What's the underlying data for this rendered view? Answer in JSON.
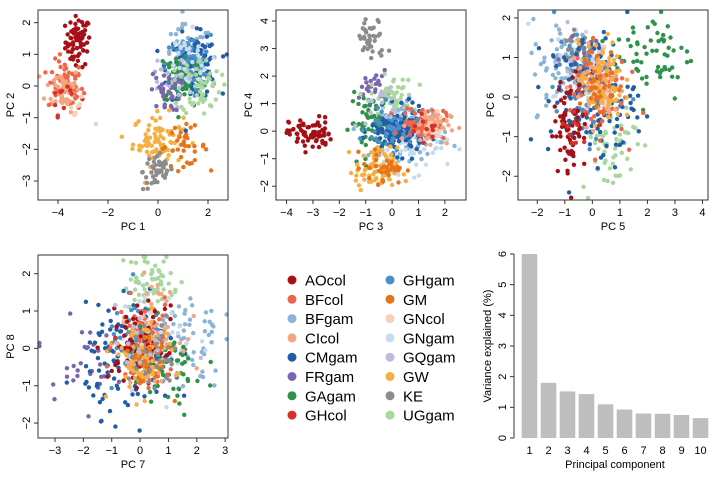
{
  "legend": [
    {
      "label": "AOcol",
      "color": "#a50f15"
    },
    {
      "label": "BFcol",
      "color": "#ef6548"
    },
    {
      "label": "BFgam",
      "color": "#8cb4d6"
    },
    {
      "label": "CIcol",
      "color": "#f4a582"
    },
    {
      "label": "CMgam",
      "color": "#1f5fa8"
    },
    {
      "label": "FRgam",
      "color": "#7b64b0"
    },
    {
      "label": "GAgam",
      "color": "#2e9248"
    },
    {
      "label": "GHcol",
      "color": "#d73027"
    },
    {
      "label": "GHgam",
      "color": "#4a90c8"
    },
    {
      "label": "GM",
      "color": "#e6741c"
    },
    {
      "label": "GNcol",
      "color": "#f8cfba"
    },
    {
      "label": "GNgam",
      "color": "#c6dbef"
    },
    {
      "label": "GQgam",
      "color": "#bcbddc"
    },
    {
      "label": "GW",
      "color": "#f5b041"
    },
    {
      "label": "KE",
      "color": "#8c8c8c"
    },
    {
      "label": "UGgam",
      "color": "#a8d8a0"
    }
  ],
  "chart_data": [
    {
      "type": "scatter",
      "xlabel": "PC 1",
      "ylabel": "PC 2",
      "xlim": [
        -4.8,
        2.8
      ],
      "ylim": [
        -3.6,
        2.4
      ],
      "xticks": [
        -4,
        -2,
        0,
        2
      ],
      "yticks": [
        -3,
        -2,
        -1,
        0,
        1,
        2
      ],
      "clusters": [
        {
          "group": "AOcol",
          "cx": -3.2,
          "cy": 1.4,
          "sx": 0.25,
          "sy": 0.4,
          "n": 70
        },
        {
          "group": "BFcol",
          "cx": -3.7,
          "cy": 0.0,
          "sx": 0.35,
          "sy": 0.4,
          "n": 60
        },
        {
          "group": "CIcol",
          "cx": -3.8,
          "cy": -0.1,
          "sx": 0.35,
          "sy": 0.35,
          "n": 50
        },
        {
          "group": "GHcol",
          "cx": -3.7,
          "cy": -0.3,
          "sx": 0.3,
          "sy": 0.3,
          "n": 12
        },
        {
          "group": "GNcol",
          "cx": -3.3,
          "cy": -0.8,
          "sx": 0.3,
          "sy": 0.2,
          "n": 8
        },
        {
          "group": "GW",
          "cx": 0.0,
          "cy": -1.7,
          "sx": 0.5,
          "sy": 0.4,
          "n": 80
        },
        {
          "group": "GM",
          "cx": 1.0,
          "cy": -1.9,
          "sx": 0.5,
          "sy": 0.3,
          "n": 35
        },
        {
          "group": "KE",
          "cx": 0.0,
          "cy": -2.7,
          "sx": 0.3,
          "sy": 0.3,
          "n": 45
        },
        {
          "group": "BFgam",
          "cx": 1.2,
          "cy": 0.9,
          "sx": 0.5,
          "sy": 0.5,
          "n": 60
        },
        {
          "group": "CMgam",
          "cx": 1.4,
          "cy": 0.6,
          "sx": 0.5,
          "sy": 0.5,
          "n": 140
        },
        {
          "group": "GHgam",
          "cx": 1.2,
          "cy": 0.7,
          "sx": 0.45,
          "sy": 0.45,
          "n": 50
        },
        {
          "group": "GAgam",
          "cx": 0.9,
          "cy": 0.3,
          "sx": 0.45,
          "sy": 0.45,
          "n": 60
        },
        {
          "group": "UGgam",
          "cx": 1.7,
          "cy": 0.0,
          "sx": 0.4,
          "sy": 0.45,
          "n": 60
        },
        {
          "group": "GNgam",
          "cx": 1.0,
          "cy": 0.7,
          "sx": 0.6,
          "sy": 0.5,
          "n": 30
        },
        {
          "group": "GQgam",
          "cx": 0.3,
          "cy": 0.1,
          "sx": 0.4,
          "sy": 0.4,
          "n": 15
        },
        {
          "group": "FRgam",
          "cx": 0.3,
          "cy": -0.2,
          "sx": 0.3,
          "sy": 0.3,
          "n": 30
        }
      ]
    },
    {
      "type": "scatter",
      "xlabel": "PC 3",
      "ylabel": "PC 4",
      "xlim": [
        -4.4,
        2.8
      ],
      "ylim": [
        -2.5,
        4.4
      ],
      "xticks": [
        -4,
        -3,
        -2,
        -1,
        0,
        1,
        2
      ],
      "yticks": [
        -2,
        -1,
        0,
        1,
        2,
        3,
        4
      ],
      "clusters": [
        {
          "group": "AOcol",
          "cx": -3.1,
          "cy": -0.1,
          "sx": 0.4,
          "sy": 0.3,
          "n": 70
        },
        {
          "group": "KE",
          "cx": -0.8,
          "cy": 3.3,
          "sx": 0.3,
          "sy": 0.4,
          "n": 40
        },
        {
          "group": "FRgam",
          "cx": -0.7,
          "cy": 1.6,
          "sx": 0.25,
          "sy": 0.3,
          "n": 25
        },
        {
          "group": "UGgam",
          "cx": 0.0,
          "cy": 1.2,
          "sx": 0.4,
          "sy": 0.4,
          "n": 60
        },
        {
          "group": "GAgam",
          "cx": -0.8,
          "cy": 0.3,
          "sx": 0.4,
          "sy": 0.5,
          "n": 60
        },
        {
          "group": "BFgam",
          "cx": 0.8,
          "cy": 0.0,
          "sx": 0.6,
          "sy": 0.5,
          "n": 80
        },
        {
          "group": "GNgam",
          "cx": 0.9,
          "cy": -0.5,
          "sx": 0.6,
          "sy": 0.5,
          "n": 60
        },
        {
          "group": "CMgam",
          "cx": 0.2,
          "cy": 0.0,
          "sx": 0.5,
          "sy": 0.4,
          "n": 140
        },
        {
          "group": "GHgam",
          "cx": 0.0,
          "cy": 0.1,
          "sx": 0.5,
          "sy": 0.4,
          "n": 50
        },
        {
          "group": "BFcol",
          "cx": 1.2,
          "cy": 0.3,
          "sx": 0.4,
          "sy": 0.3,
          "n": 70
        },
        {
          "group": "CIcol",
          "cx": 1.4,
          "cy": 0.2,
          "sx": 0.4,
          "sy": 0.3,
          "n": 50
        },
        {
          "group": "GNcol",
          "cx": 1.5,
          "cy": 0.1,
          "sx": 0.3,
          "sy": 0.3,
          "n": 10
        },
        {
          "group": "GW",
          "cx": -0.6,
          "cy": -1.4,
          "sx": 0.4,
          "sy": 0.4,
          "n": 80
        },
        {
          "group": "GM",
          "cx": -0.3,
          "cy": -1.3,
          "sx": 0.4,
          "sy": 0.3,
          "n": 35
        },
        {
          "group": "GQgam",
          "cx": -0.4,
          "cy": 0.8,
          "sx": 0.3,
          "sy": 0.4,
          "n": 15
        },
        {
          "group": "GHcol",
          "cx": 1.3,
          "cy": 0.3,
          "sx": 0.3,
          "sy": 0.3,
          "n": 10
        }
      ]
    },
    {
      "type": "scatter",
      "xlabel": "PC 5",
      "ylabel": "PC 6",
      "xlim": [
        -2.7,
        4.2
      ],
      "ylim": [
        -2.6,
        2.2
      ],
      "xticks": [
        -2,
        -1,
        0,
        1,
        2,
        3,
        4
      ],
      "yticks": [
        -2,
        -1,
        0,
        1,
        2
      ],
      "clusters": [
        {
          "group": "GAgam",
          "cx": 2.2,
          "cy": 1.1,
          "sx": 0.7,
          "sy": 0.6,
          "n": 60
        },
        {
          "group": "BFgam",
          "cx": -1.0,
          "cy": 0.8,
          "sx": 0.6,
          "sy": 0.6,
          "n": 60
        },
        {
          "group": "GNgam",
          "cx": -0.3,
          "cy": 0.8,
          "sx": 0.6,
          "sy": 0.5,
          "n": 50
        },
        {
          "group": "KE",
          "cx": -0.5,
          "cy": 1.3,
          "sx": 0.3,
          "sy": 0.3,
          "n": 30
        },
        {
          "group": "GQgam",
          "cx": -0.7,
          "cy": 0.9,
          "sx": 0.4,
          "sy": 0.4,
          "n": 15
        },
        {
          "group": "FRgam",
          "cx": -0.3,
          "cy": 0.8,
          "sx": 0.4,
          "sy": 0.4,
          "n": 30
        },
        {
          "group": "UGgam",
          "cx": 0.6,
          "cy": -1.2,
          "sx": 0.5,
          "sy": 0.6,
          "n": 60
        },
        {
          "group": "CMgam",
          "cx": 0.0,
          "cy": 0.0,
          "sx": 0.8,
          "sy": 0.8,
          "n": 140
        },
        {
          "group": "GHgam",
          "cx": -0.2,
          "cy": 0.2,
          "sx": 0.6,
          "sy": 0.6,
          "n": 50
        },
        {
          "group": "BFcol",
          "cx": 0.2,
          "cy": 0.2,
          "sx": 0.5,
          "sy": 0.6,
          "n": 70
        },
        {
          "group": "CIcol",
          "cx": 0.2,
          "cy": 0.3,
          "sx": 0.5,
          "sy": 0.5,
          "n": 50
        },
        {
          "group": "GNcol",
          "cx": 0.3,
          "cy": 0.2,
          "sx": 0.3,
          "sy": 0.3,
          "n": 10
        },
        {
          "group": "GW",
          "cx": 0.3,
          "cy": 0.4,
          "sx": 0.4,
          "sy": 0.5,
          "n": 80
        },
        {
          "group": "GM",
          "cx": 0.1,
          "cy": 0.4,
          "sx": 0.4,
          "sy": 0.5,
          "n": 35
        },
        {
          "group": "AOcol",
          "cx": -0.8,
          "cy": -0.7,
          "sx": 0.3,
          "sy": 0.6,
          "n": 70
        },
        {
          "group": "GHcol",
          "cx": -0.5,
          "cy": -0.6,
          "sx": 0.3,
          "sy": 0.4,
          "n": 12
        }
      ]
    },
    {
      "type": "scatter",
      "xlabel": "PC 7",
      "ylabel": "PC 8",
      "xlim": [
        -3.6,
        3.1
      ],
      "ylim": [
        -2.4,
        2.5
      ],
      "xticks": [
        -3,
        -2,
        -1,
        0,
        1,
        2,
        3
      ],
      "yticks": [
        -2,
        -1,
        0,
        1,
        2
      ],
      "clusters": [
        {
          "group": "UGgam",
          "cx": 0.4,
          "cy": 1.8,
          "sx": 0.5,
          "sy": 0.4,
          "n": 60
        },
        {
          "group": "FRgam",
          "cx": -2.2,
          "cy": -0.3,
          "sx": 0.6,
          "sy": 0.5,
          "n": 30
        },
        {
          "group": "BFgam",
          "cx": 1.5,
          "cy": 0.3,
          "sx": 0.7,
          "sy": 0.7,
          "n": 60
        },
        {
          "group": "GNgam",
          "cx": 0.5,
          "cy": 0.3,
          "sx": 0.7,
          "sy": 0.6,
          "n": 50
        },
        {
          "group": "CMgam",
          "cx": -0.3,
          "cy": -0.3,
          "sx": 0.8,
          "sy": 0.7,
          "n": 140
        },
        {
          "group": "GHgam",
          "cx": 0.0,
          "cy": 0.0,
          "sx": 0.6,
          "sy": 0.6,
          "n": 50
        },
        {
          "group": "GAgam",
          "cx": 0.9,
          "cy": -0.6,
          "sx": 0.7,
          "sy": 0.6,
          "n": 60
        },
        {
          "group": "BFcol",
          "cx": 0.2,
          "cy": 0.2,
          "sx": 0.5,
          "sy": 0.6,
          "n": 70
        },
        {
          "group": "CIcol",
          "cx": 0.4,
          "cy": 0.5,
          "sx": 0.5,
          "sy": 0.6,
          "n": 50
        },
        {
          "group": "GNcol",
          "cx": 0.4,
          "cy": 0.4,
          "sx": 0.3,
          "sy": 0.3,
          "n": 10
        },
        {
          "group": "AOcol",
          "cx": -0.1,
          "cy": 0.1,
          "sx": 0.5,
          "sy": 0.5,
          "n": 70
        },
        {
          "group": "GHcol",
          "cx": 0.1,
          "cy": 0.0,
          "sx": 0.4,
          "sy": 0.4,
          "n": 12
        },
        {
          "group": "GW",
          "cx": 0.0,
          "cy": -0.3,
          "sx": 0.5,
          "sy": 0.5,
          "n": 80
        },
        {
          "group": "GM",
          "cx": 0.2,
          "cy": -0.2,
          "sx": 0.4,
          "sy": 0.4,
          "n": 35
        },
        {
          "group": "KE",
          "cx": 0.4,
          "cy": -0.3,
          "sx": 0.5,
          "sy": 0.5,
          "n": 30
        },
        {
          "group": "GQgam",
          "cx": 0.0,
          "cy": 0.2,
          "sx": 0.5,
          "sy": 0.5,
          "n": 15
        }
      ]
    },
    {
      "type": "bar",
      "xlabel": "Principal component",
      "ylabel": "Variance explained (%)",
      "ylim": [
        0,
        6
      ],
      "yticks": [
        0,
        1,
        2,
        3,
        4,
        5,
        6
      ],
      "categories": [
        "1",
        "2",
        "3",
        "4",
        "5",
        "6",
        "7",
        "8",
        "9",
        "10"
      ],
      "values": [
        6.0,
        1.8,
        1.52,
        1.43,
        1.1,
        0.93,
        0.8,
        0.79,
        0.75,
        0.65
      ],
      "bar_color": "#bebebe"
    }
  ]
}
